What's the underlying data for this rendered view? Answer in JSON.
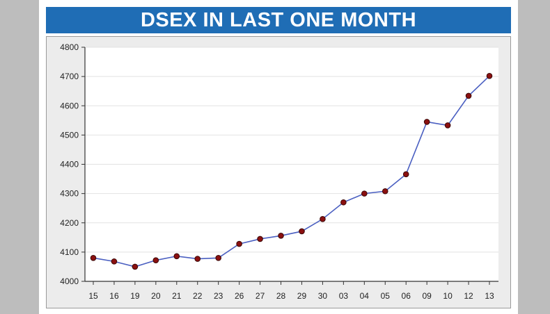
{
  "chart_data": {
    "type": "line",
    "title": "DSEX IN LAST ONE MONTH",
    "xlabel": "",
    "ylabel": "",
    "categories": [
      "15",
      "16",
      "19",
      "20",
      "21",
      "22",
      "23",
      "26",
      "27",
      "28",
      "29",
      "30",
      "03",
      "04",
      "05",
      "06",
      "09",
      "10",
      "12",
      "13"
    ],
    "series": [
      {
        "values": [
          4080,
          4068,
          4050,
          4072,
          4086,
          4077,
          4080,
          4128,
          4145,
          4156,
          4171,
          4213,
          4270,
          4300,
          4308,
          4366,
          4545,
          4533,
          4634,
          4702
        ]
      }
    ],
    "ylim": [
      4000,
      4800
    ],
    "yticks": [
      4000,
      4100,
      4200,
      4300,
      4400,
      4500,
      4600,
      4700,
      4800
    ],
    "grid": true,
    "legend": "none",
    "colors": {
      "line": "#4a5fc1",
      "marker_fill": "#8b1010",
      "marker_edge": "#3a0808",
      "plot_bg": "#ffffff",
      "frame_bg": "#ececec",
      "title_bg": "#1f6db5"
    }
  }
}
